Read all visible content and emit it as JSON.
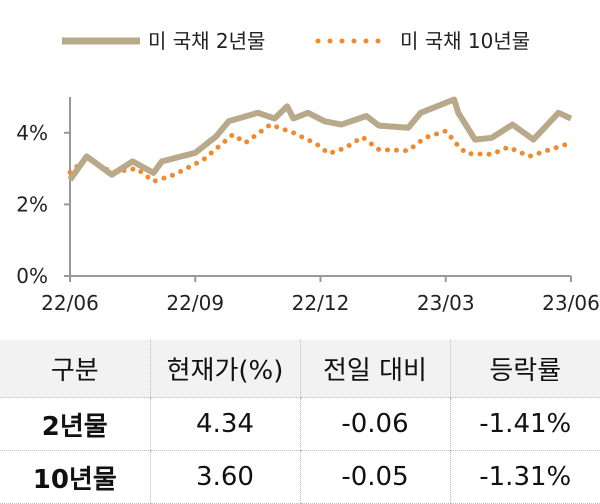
{
  "legend": [
    {
      "label": "미 국채 2년물",
      "color": "#b8a98a",
      "style": "solid"
    },
    {
      "label": "미 국채 10년물",
      "color": "#f08a2c",
      "style": "dotted"
    }
  ],
  "chart_data": {
    "type": "line",
    "title": "",
    "xlabel": "",
    "ylabel": "",
    "x_unit": "months since 22/06",
    "xticks": [
      "22/06",
      "22/09",
      "22/12",
      "23/03",
      "23/06"
    ],
    "yticks": [
      "0%",
      "2%",
      "4%"
    ],
    "ylim": [
      0,
      5
    ],
    "xlim": [
      0,
      12
    ],
    "series": [
      {
        "name": "미 국채 2년물",
        "x": [
          0,
          0.4,
          1.0,
          1.5,
          2.0,
          2.2,
          3.0,
          3.5,
          3.8,
          4.5,
          4.9,
          5.2,
          5.35,
          5.7,
          6.1,
          6.5,
          7.1,
          7.4,
          8.1,
          8.4,
          9.2,
          9.3,
          9.7,
          10.1,
          10.6,
          11.1,
          11.7,
          12
        ],
        "y": [
          2.69,
          3.34,
          2.83,
          3.2,
          2.88,
          3.2,
          3.44,
          3.9,
          4.32,
          4.56,
          4.4,
          4.74,
          4.4,
          4.56,
          4.32,
          4.23,
          4.47,
          4.2,
          4.14,
          4.56,
          4.93,
          4.56,
          3.81,
          3.86,
          4.23,
          3.81,
          4.56,
          4.4
        ]
      },
      {
        "name": "미 국채 10년물",
        "x": [
          0,
          0.4,
          1.0,
          1.6,
          2.0,
          2.5,
          3.2,
          3.9,
          4.2,
          4.8,
          5.35,
          5.9,
          6.2,
          6.6,
          7.0,
          7.4,
          8.1,
          8.5,
          9.0,
          9.3,
          9.5,
          10.1,
          10.5,
          11.0,
          11.5,
          12
        ],
        "y": [
          2.89,
          3.29,
          2.9,
          3.0,
          2.64,
          2.83,
          3.25,
          3.95,
          3.72,
          4.23,
          4.0,
          3.69,
          3.42,
          3.58,
          3.88,
          3.53,
          3.5,
          3.86,
          4.05,
          3.63,
          3.42,
          3.4,
          3.6,
          3.34,
          3.53,
          3.72
        ]
      }
    ]
  },
  "table": {
    "headers": [
      "구분",
      "현재가(%)",
      "전일 대비",
      "등락률"
    ],
    "rows": [
      [
        "2년물",
        "4.34",
        "-0.06",
        "-1.41%"
      ],
      [
        "10년물",
        "3.60",
        "-0.05",
        "-1.31%"
      ]
    ]
  }
}
